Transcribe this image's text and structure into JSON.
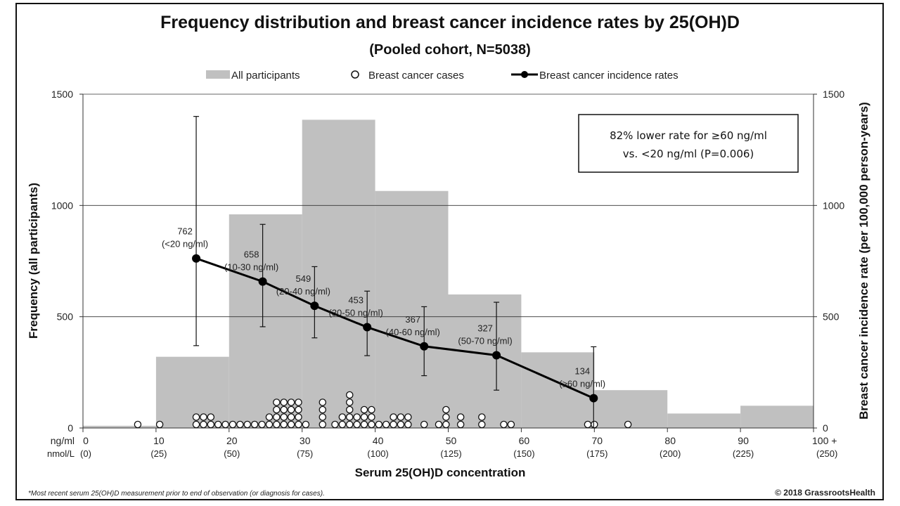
{
  "chart_data": {
    "type": "bar",
    "title": "Frequency distribution and breast cancer incidence rates by 25(OH)D",
    "subtitle": "(Pooled cohort, N=5038)",
    "legend": {
      "placement": "top",
      "items": [
        "All participants",
        "Breast cancer cases",
        "Breast cancer incidence rates"
      ]
    },
    "ylabel_left": "Frequency (all participants)",
    "ylabel_right": "Breast cancer incidence rate (per 100,000 person-years)",
    "xlabel": "Serum 25(OH)D concentration",
    "x_unit_label_1": "ng/ml",
    "x_unit_label_2": "nmol/L",
    "ylim": [
      0,
      1500
    ],
    "yticks": [
      "0",
      "500",
      "1000",
      "1500"
    ],
    "xticks": [
      {
        "x": 0,
        "ng": "0",
        "nmol": "(0)"
      },
      {
        "x": 10,
        "ng": "10",
        "nmol": "(25)"
      },
      {
        "x": 20,
        "ng": "20",
        "nmol": "(50)"
      },
      {
        "x": 30,
        "ng": "30",
        "nmol": "(75)"
      },
      {
        "x": 40,
        "ng": "40",
        "nmol": "(100)"
      },
      {
        "x": 50,
        "ng": "50",
        "nmol": "(125)"
      },
      {
        "x": 60,
        "ng": "60",
        "nmol": "(150)"
      },
      {
        "x": 70,
        "ng": "70",
        "nmol": "(175)"
      },
      {
        "x": 80,
        "ng": "80",
        "nmol": "(200)"
      },
      {
        "x": 90,
        "ng": "90",
        "nmol": "(225)"
      },
      {
        "x": 100,
        "ng": "100 +",
        "nmol": "(250)"
      }
    ],
    "grid": true,
    "histogram": [
      {
        "x0": 0,
        "x1": 10,
        "value": 10
      },
      {
        "x0": 10,
        "x1": 20,
        "value": 320
      },
      {
        "x0": 20,
        "x1": 30,
        "value": 960
      },
      {
        "x0": 30,
        "x1": 40,
        "value": 1385
      },
      {
        "x0": 40,
        "x1": 50,
        "value": 1065
      },
      {
        "x0": 50,
        "x1": 60,
        "value": 600
      },
      {
        "x0": 60,
        "x1": 70,
        "value": 340
      },
      {
        "x0": 70,
        "x1": 80,
        "value": 170
      },
      {
        "x0": 80,
        "x1": 90,
        "value": 65
      },
      {
        "x0": 90,
        "x1": 100,
        "value": 100
      }
    ],
    "incidence_rates": [
      {
        "x": 15.5,
        "y": 762,
        "err_low": 370,
        "err_high": 1400,
        "value_label": "762",
        "range_label": "(<20 ng/ml)"
      },
      {
        "x": 24.6,
        "y": 658,
        "err_low": 455,
        "err_high": 915,
        "value_label": "658",
        "range_label": "(10-30 ng/ml)"
      },
      {
        "x": 31.7,
        "y": 549,
        "err_low": 405,
        "err_high": 725,
        "value_label": "549",
        "range_label": "(20-40 ng/ml)"
      },
      {
        "x": 38.9,
        "y": 453,
        "err_low": 325,
        "err_high": 615,
        "value_label": "453",
        "range_label": "(30-50 ng/ml)"
      },
      {
        "x": 46.7,
        "y": 367,
        "err_low": 235,
        "err_high": 545,
        "value_label": "367",
        "range_label": "(40-60 ng/ml)"
      },
      {
        "x": 56.6,
        "y": 327,
        "err_low": 170,
        "err_high": 565,
        "value_label": "327",
        "range_label": "(50-70 ng/ml)"
      },
      {
        "x": 69.9,
        "y": 134,
        "err_low": 0,
        "err_high": 365,
        "value_label": "134",
        "range_label": "(≥60 ng/ml)"
      }
    ],
    "cases": [
      {
        "x": 7.5,
        "n": 1
      },
      {
        "x": 10.5,
        "n": 1
      },
      {
        "x": 15.5,
        "n": 2
      },
      {
        "x": 16.5,
        "n": 2
      },
      {
        "x": 17.5,
        "n": 2
      },
      {
        "x": 18.5,
        "n": 1
      },
      {
        "x": 19.5,
        "n": 1
      },
      {
        "x": 20.5,
        "n": 1
      },
      {
        "x": 21.5,
        "n": 1
      },
      {
        "x": 22.5,
        "n": 1
      },
      {
        "x": 23.5,
        "n": 1
      },
      {
        "x": 24.5,
        "n": 1
      },
      {
        "x": 25.5,
        "n": 2
      },
      {
        "x": 26.5,
        "n": 4
      },
      {
        "x": 27.5,
        "n": 4
      },
      {
        "x": 28.5,
        "n": 4
      },
      {
        "x": 29.5,
        "n": 4
      },
      {
        "x": 30.5,
        "n": 1
      },
      {
        "x": 32.8,
        "n": 4
      },
      {
        "x": 34.5,
        "n": 1
      },
      {
        "x": 35.5,
        "n": 2
      },
      {
        "x": 36.5,
        "n": 5
      },
      {
        "x": 37.5,
        "n": 2
      },
      {
        "x": 38.5,
        "n": 3
      },
      {
        "x": 39.5,
        "n": 3
      },
      {
        "x": 40.5,
        "n": 1
      },
      {
        "x": 41.5,
        "n": 1
      },
      {
        "x": 42.5,
        "n": 2
      },
      {
        "x": 43.5,
        "n": 2
      },
      {
        "x": 44.5,
        "n": 2
      },
      {
        "x": 46.7,
        "n": 1
      },
      {
        "x": 48.7,
        "n": 1
      },
      {
        "x": 49.7,
        "n": 3
      },
      {
        "x": 51.7,
        "n": 2
      },
      {
        "x": 54.6,
        "n": 2
      },
      {
        "x": 57.6,
        "n": 1
      },
      {
        "x": 58.6,
        "n": 1
      },
      {
        "x": 69.1,
        "n": 1
      },
      {
        "x": 70,
        "n": 1
      },
      {
        "x": 74.6,
        "n": 1
      }
    ],
    "annotation": [
      "82% lower rate for ≥60 ng/ml",
      "vs. <20 ng/ml (P=0.006)"
    ]
  },
  "footnote": "*Most recent serum 25(OH)D measurement prior to end of observation (or diagnosis for cases).",
  "copyright": "© 2018 GrassrootsHealth",
  "colors": {
    "bar": "#c0c0c0",
    "line": "#000000",
    "grid": "#333333"
  }
}
